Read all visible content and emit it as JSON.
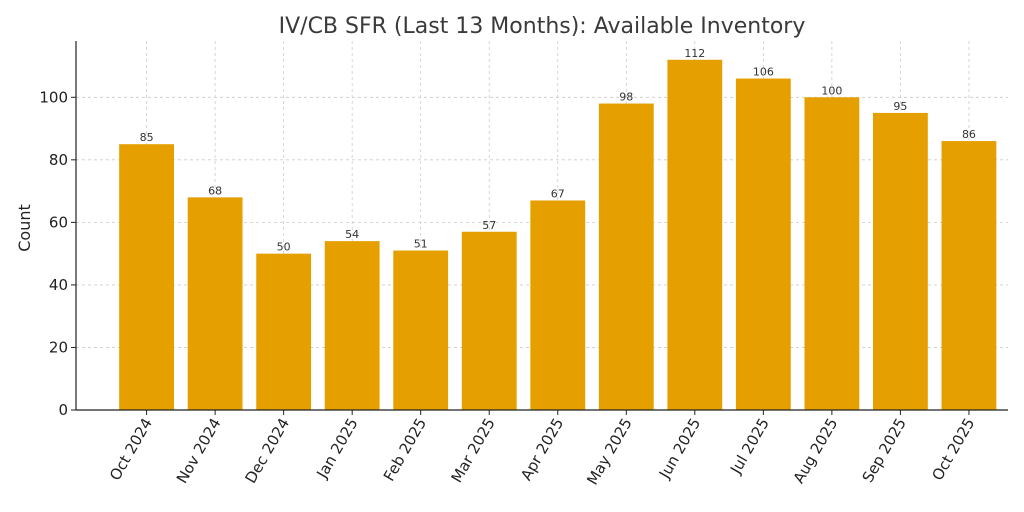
{
  "chart_data": {
    "type": "bar",
    "title": "IV/CB SFR (Last 13 Months): Available Inventory",
    "xlabel": "",
    "ylabel": "Count",
    "categories": [
      "Oct 2024",
      "Nov 2024",
      "Dec 2024",
      "Jan 2025",
      "Feb 2025",
      "Mar 2025",
      "Apr 2025",
      "May 2025",
      "Jun 2025",
      "Jul 2025",
      "Aug 2025",
      "Sep 2025",
      "Oct 2025"
    ],
    "values": [
      85,
      68,
      50,
      54,
      51,
      57,
      67,
      98,
      112,
      106,
      100,
      95,
      86
    ],
    "ylim": [
      0,
      118
    ],
    "yticks": [
      0,
      20,
      40,
      60,
      80,
      100
    ],
    "grid": true,
    "bar_color": "#e5a000"
  }
}
